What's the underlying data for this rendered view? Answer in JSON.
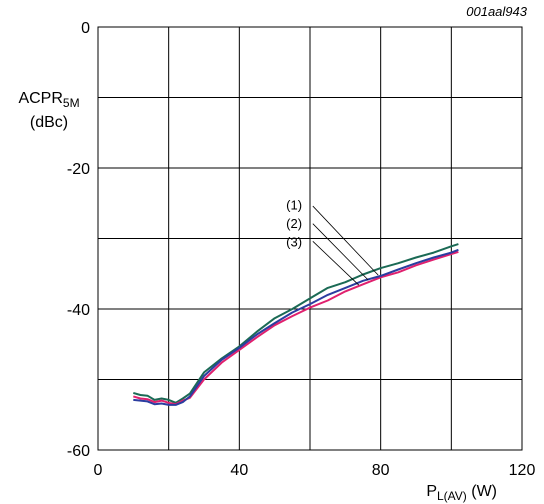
{
  "figure_id": "001aal943",
  "chart_data": {
    "type": "line",
    "title": "",
    "xlabel_main": "P",
    "xlabel_sub": "L(AV)",
    "xlabel_unit": " (W)",
    "ylabel_main": "ACPR",
    "ylabel_sub": "5M",
    "ylabel_unit": "(dBc)",
    "xlim": [
      0,
      120
    ],
    "ylim": [
      -60,
      0
    ],
    "x_ticks": [
      0,
      40,
      80,
      120
    ],
    "x_tick_labels": [
      "0",
      "40",
      "80",
      "120"
    ],
    "y_ticks": [
      0,
      -20,
      -40,
      -60
    ],
    "y_tick_labels": [
      "0",
      "-20",
      "-40",
      "-60"
    ],
    "grid_x_step": 20,
    "grid_y_step": 10,
    "grid": true,
    "series": [
      {
        "name": "(1)",
        "color": "#1b6a55",
        "x": [
          10,
          12,
          14,
          16,
          18,
          20,
          22,
          24,
          26,
          30,
          35,
          40,
          45,
          50,
          55,
          60,
          65,
          70,
          75,
          80,
          85,
          90,
          95,
          100,
          102
        ],
        "y": [
          -51.9,
          -52.2,
          -52.3,
          -52.9,
          -52.7,
          -52.9,
          -53.3,
          -52.7,
          -52.0,
          -49.0,
          -47.0,
          -45.3,
          -43.2,
          -41.3,
          -40.0,
          -38.5,
          -37.0,
          -36.2,
          -35.1,
          -34.2,
          -33.5,
          -32.7,
          -32.0,
          -31.1,
          -30.8
        ]
      },
      {
        "name": "(2)",
        "color": "#e0206e",
        "x": [
          10,
          12,
          14,
          16,
          18,
          20,
          22,
          24,
          26,
          30,
          35,
          40,
          45,
          50,
          55,
          60,
          65,
          70,
          75,
          80,
          85,
          90,
          95,
          100,
          102
        ],
        "y": [
          -52.4,
          -52.7,
          -52.8,
          -53.2,
          -53.0,
          -53.3,
          -53.5,
          -53.0,
          -52.6,
          -50.0,
          -47.6,
          -45.8,
          -44.0,
          -42.3,
          -41.0,
          -39.8,
          -38.8,
          -37.5,
          -36.5,
          -35.5,
          -34.8,
          -33.8,
          -33.0,
          -32.2,
          -31.9
        ]
      },
      {
        "name": "(3)",
        "color": "#2b3da0",
        "x": [
          10,
          12,
          14,
          16,
          18,
          20,
          22,
          24,
          26,
          30,
          35,
          40,
          45,
          50,
          55,
          60,
          65,
          70,
          75,
          80,
          85,
          90,
          95,
          100,
          102
        ],
        "y": [
          -52.9,
          -53.0,
          -53.1,
          -53.5,
          -53.4,
          -53.6,
          -53.6,
          -53.2,
          -52.4,
          -49.5,
          -47.2,
          -45.5,
          -43.6,
          -42.0,
          -40.5,
          -39.3,
          -38.0,
          -37.0,
          -36.0,
          -35.3,
          -34.4,
          -33.5,
          -32.7,
          -32.0,
          -31.6
        ]
      }
    ],
    "callouts": [
      {
        "label": "(1)",
        "text_at": [
          55.5,
          -25.2
        ],
        "line_from": [
          60.8,
          -25.4
        ],
        "line_to": [
          79.3,
          -35.2
        ]
      },
      {
        "label": "(2)",
        "text_at": [
          55.5,
          -27.8
        ],
        "line_from": [
          60.8,
          -27.9
        ],
        "line_to": [
          76.5,
          -35.9
        ]
      },
      {
        "label": "(3)",
        "text_at": [
          55.5,
          -30.4
        ],
        "line_from": [
          60.8,
          -30.4
        ],
        "line_to": [
          73.8,
          -36.6
        ]
      }
    ]
  }
}
